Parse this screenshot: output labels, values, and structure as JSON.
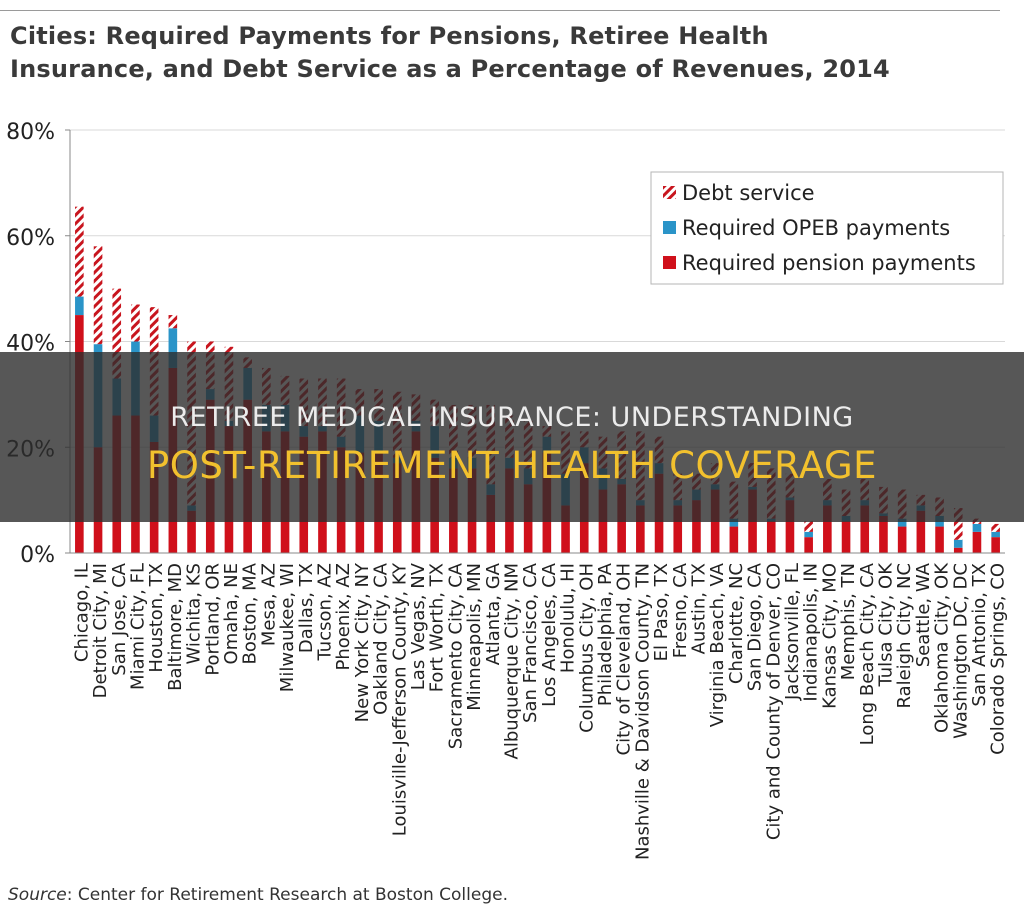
{
  "title": {
    "line1": "Cities: Required Payments for Pensions, Retiree Health",
    "line2": "Insurance, and Debt Service as a Percentage of Revenues, 2014"
  },
  "source": {
    "label": "Source",
    "text": ": Center for Retirement Research at Boston College."
  },
  "overlay": {
    "line1": "RETIREE MEDICAL INSURANCE: UNDERSTANDING",
    "line2": "POST-RETIREMENT HEALTH COVERAGE"
  },
  "colors": {
    "pension": "#d0101b",
    "opeb": "#2a94c8",
    "debt_stripe": "#c8151e",
    "axis": "#888888",
    "grid": "#d9d9d9"
  },
  "chart_data": {
    "type": "bar",
    "stacked": true,
    "title": "Cities: Required Payments for Pensions, Retiree Health Insurance, and Debt Service as a Percentage of Revenues, 2014",
    "xlabel": "",
    "ylabel": "",
    "ylim": [
      0,
      80
    ],
    "yticks": [
      0,
      20,
      40,
      60,
      80
    ],
    "ytick_format": "{v}%",
    "legend_position": "top-right",
    "categories": [
      "Chicago, IL",
      "Detroit City, MI",
      "San Jose, CA",
      "Miami City, FL",
      "Houston, TX",
      "Baltimore, MD",
      "Wichita, KS",
      "Portland, OR",
      "Omaha, NE",
      "Boston, MA",
      "Mesa, AZ",
      "Milwaukee, WI",
      "Dallas, TX",
      "Tucson, AZ",
      "Phoenix, AZ",
      "New York City, NY",
      "Oakland City, CA",
      "Louisville-Jefferson County, KY",
      "Las Vegas, NV",
      "Fort Worth, TX",
      "Sacramento City, CA",
      "Minneapolis, MN",
      "Atlanta, GA",
      "Albuquerque City, NM",
      "San Francisco, CA",
      "Los Angeles, CA",
      "Honolulu, HI",
      "Columbus City, OH",
      "Philadelphia, PA",
      "City of Cleveland, OH",
      "Nashville & Davidson County, TN",
      "El Paso, TX",
      "Fresno, CA",
      "Austin, TX",
      "Virginia Beach, VA",
      "Charlotte, NC",
      "San Diego, CA",
      "City and County of Denver, CO",
      "Jacksonville, FL",
      "Indianapolis, IN",
      "Kansas City, MO",
      "Memphis, TN",
      "Long Beach City, CA",
      "Tulsa City, OK",
      "Raleigh City, NC",
      "Seattle, WA",
      "Oklahoma City, OK",
      "Washington DC, DC",
      "San Antonio, TX",
      "Colorado Springs, CO"
    ],
    "series": [
      {
        "name": "Required pension payments",
        "color": "#d0101b",
        "values": [
          45,
          20,
          26,
          26,
          21,
          35,
          8,
          29,
          24,
          29,
          23,
          23,
          22,
          23,
          20,
          19,
          19,
          17,
          23,
          18,
          16,
          16,
          11,
          16,
          13,
          19,
          9,
          17,
          12,
          13,
          9,
          15,
          9,
          10,
          12,
          5,
          12,
          6,
          10,
          3,
          9,
          6,
          9,
          7,
          5,
          8,
          5,
          1,
          4,
          3
        ]
      },
      {
        "name": "Required OPEB payments",
        "color": "#2a94c8",
        "values": [
          3.5,
          19.5,
          7,
          14,
          5,
          7.5,
          1,
          2,
          1,
          6,
          5,
          5,
          2,
          1,
          2,
          7,
          6,
          1,
          2,
          6,
          2,
          2,
          2,
          2,
          3,
          3,
          6,
          3,
          4,
          1,
          1,
          2,
          1,
          2,
          1,
          1.5,
          0.5,
          0.5,
          0.5,
          1,
          1,
          1,
          1,
          0.5,
          1.5,
          1,
          2,
          1.5,
          1.5,
          1
        ]
      },
      {
        "name": "Debt service",
        "color": "#c8151e",
        "pattern": "hatch",
        "values": [
          17,
          18.5,
          17,
          7,
          20.5,
          2.5,
          31,
          9,
          14,
          2,
          7,
          5.5,
          9,
          9,
          11,
          5,
          6,
          12.5,
          5,
          5,
          10,
          10,
          15,
          8,
          9,
          2,
          8,
          3,
          6,
          9,
          13,
          5,
          5,
          3,
          4,
          7,
          4.5,
          9.5,
          4.5,
          2,
          4,
          5,
          4,
          5,
          5.5,
          2,
          3.5,
          6,
          1,
          1.5
        ]
      }
    ]
  }
}
